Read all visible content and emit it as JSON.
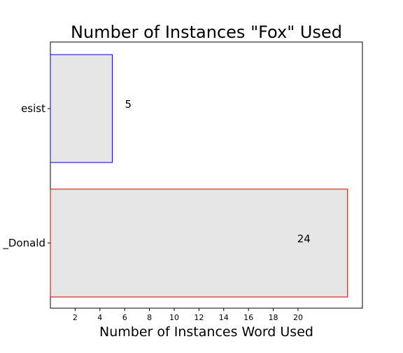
{
  "chart_data": {
    "type": "bar",
    "orientation": "horizontal",
    "title": "Number of Instances \"Fox\" Used",
    "xlabel": "Number of Instances Word Used",
    "ylabel": "",
    "categories": [
      "esist",
      "_Donald"
    ],
    "values": [
      5,
      24
    ],
    "data_labels": [
      "5",
      "24"
    ],
    "bar_fill": "#e6e6e6",
    "bar_edge_colors": [
      "#0000cc",
      "#cc0000"
    ],
    "xticks": [
      2,
      4,
      6,
      8,
      10,
      12,
      14,
      16,
      18,
      20
    ],
    "xtick_labels": [
      "2",
      "4",
      "6",
      "8",
      "10",
      "12",
      "14",
      "16",
      "18",
      "20"
    ],
    "xlim": [
      0,
      25.2
    ],
    "grid": false,
    "legend": "none"
  }
}
